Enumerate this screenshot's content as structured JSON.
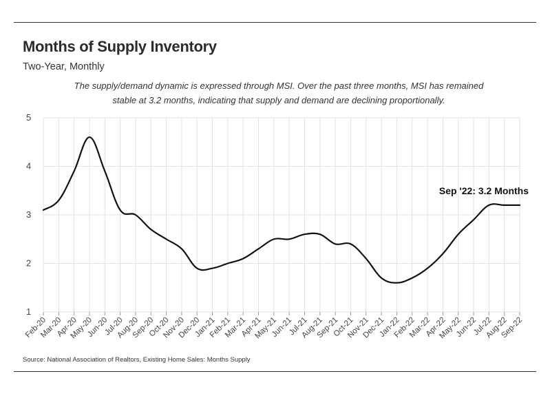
{
  "header": {
    "title": "Months of Supply Inventory",
    "subtitle": "Two-Year, Monthly",
    "description_line1": "The supply/demand dynamic is expressed through MSI. Over the past three months, MSI has remained",
    "description_line2": "stable at 3.2 months, indicating that supply and demand are declining proportionally."
  },
  "footer": {
    "source": "Source:  National Association of Realtors, Existing Home Sales: Months Supply"
  },
  "chart_data": {
    "type": "line",
    "title": "Months of Supply Inventory",
    "xlabel": "",
    "ylabel": "",
    "ylim": [
      1,
      5
    ],
    "yticks": [
      1,
      2,
      3,
      4,
      5
    ],
    "grid": "vertical and horizontal",
    "line_color": "#111111",
    "categories": [
      "Feb-20",
      "Mar-20",
      "Apr-20",
      "May-20",
      "Jun-20",
      "Jul-20",
      "Aug-20",
      "Sep-20",
      "Oct-20",
      "Nov-20",
      "Dec-20",
      "Jan-21",
      "Feb-21",
      "Mar-21",
      "Apr-21",
      "May-21",
      "Jun-21",
      "Jul-21",
      "Aug-21",
      "Sep-21",
      "Oct-21",
      "Nov-21",
      "Dec-21",
      "Jan-22",
      "Feb-22",
      "Mar-22",
      "Apr-22",
      "May-22",
      "Jun-22",
      "Jul-22",
      "Aug-22",
      "Sep-22"
    ],
    "series": [
      {
        "values": [
          3.1,
          3.3,
          3.9,
          4.6,
          3.9,
          3.1,
          3.0,
          2.7,
          2.5,
          2.3,
          1.9,
          1.9,
          2.0,
          2.1,
          2.3,
          2.5,
          2.5,
          2.6,
          2.6,
          2.4,
          2.4,
          2.1,
          1.7,
          1.6,
          1.7,
          1.9,
          2.2,
          2.6,
          2.9,
          3.2,
          3.2,
          3.2
        ]
      }
    ],
    "annotation": "Sep '22: 3.2 Months"
  }
}
